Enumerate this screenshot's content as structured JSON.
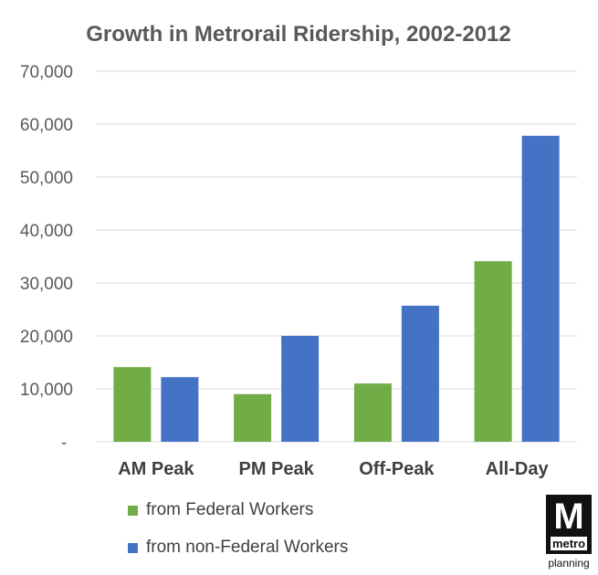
{
  "chart_data": {
    "type": "bar",
    "title": "Growth in Metrorail Ridership, 2002-2012",
    "categories": [
      "AM Peak",
      "PM Peak",
      "Off-Peak",
      "All-Day"
    ],
    "series": [
      {
        "name": "from Federal Workers",
        "color": "#70ad47",
        "values": [
          14100,
          9000,
          11000,
          34100
        ]
      },
      {
        "name": "from non-Federal Workers",
        "color": "#4472c4",
        "values": [
          12200,
          20000,
          25700,
          57800
        ]
      }
    ],
    "ylim": [
      0,
      70000
    ],
    "yticks": [
      0,
      10000,
      20000,
      30000,
      40000,
      50000,
      60000,
      70000
    ],
    "ytick_labels": [
      "-",
      "10,000",
      "20,000",
      "30,000",
      "40,000",
      "50,000",
      "60,000",
      "70,000"
    ],
    "grid": true,
    "legend": "bottom-left"
  },
  "logo": {
    "main": "M",
    "word": "metro",
    "sub": "planning"
  }
}
